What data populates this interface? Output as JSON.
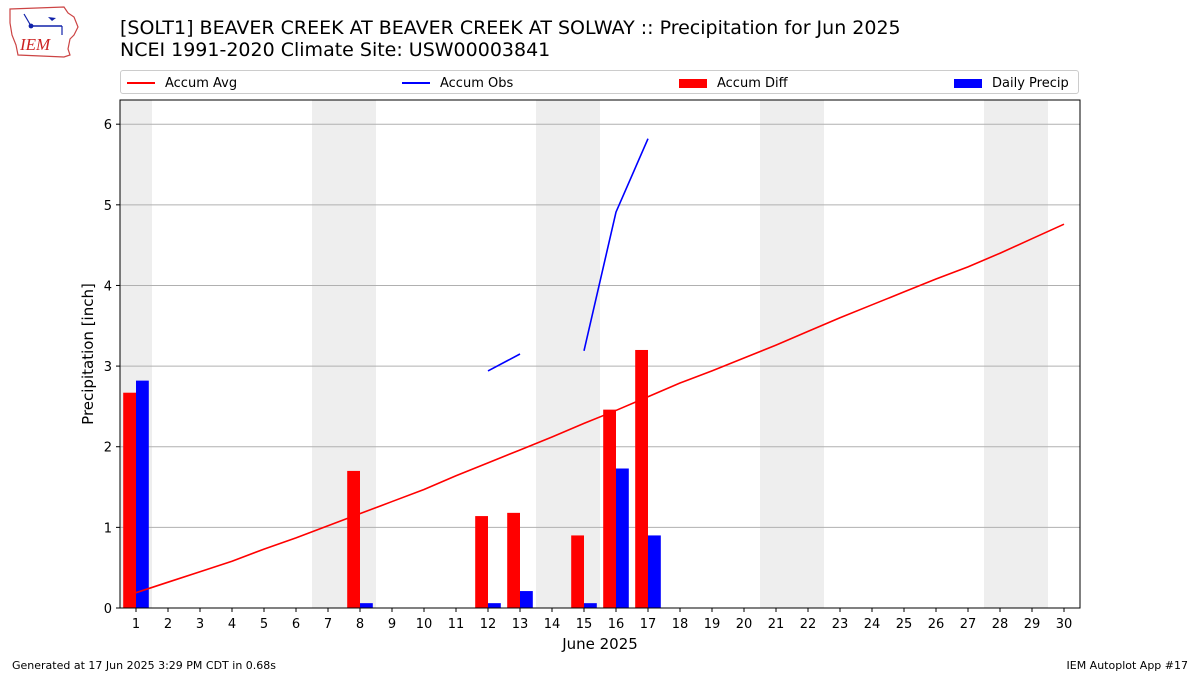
{
  "header": {
    "title_line1": "[SOLT1] BEAVER CREEK  AT BEAVER CREEK AT SOLWAY :: Precipitation for Jun 2025",
    "title_line2": "NCEI 1991-2020 Climate Site: USW00003841"
  },
  "logo": {
    "text": "IEM",
    "icon": "iowa-state-map-logo-icon"
  },
  "legend": {
    "placement": "top",
    "items": [
      {
        "label": "Accum Avg",
        "kind": "line",
        "color": "#ff0000"
      },
      {
        "label": "Accum Obs",
        "kind": "line",
        "color": "#0000ff"
      },
      {
        "label": "Accum Diff",
        "kind": "bar",
        "color": "#ff0000"
      },
      {
        "label": "Daily Precip",
        "kind": "bar",
        "color": "#0000ff"
      }
    ]
  },
  "footer": {
    "left": "Generated at 17 Jun 2025 3:29 PM CDT in 0.68s",
    "right": "IEM Autoplot App #17"
  },
  "chart_data": {
    "type": "bar",
    "xlabel": "June 2025",
    "ylabel": "Precipitation [inch]",
    "x": [
      1,
      2,
      3,
      4,
      5,
      6,
      7,
      8,
      9,
      10,
      11,
      12,
      13,
      14,
      15,
      16,
      17,
      18,
      19,
      20,
      21,
      22,
      23,
      24,
      25,
      26,
      27,
      28,
      29,
      30
    ],
    "xlim": [
      0.5,
      30.5
    ],
    "ylim": [
      0,
      6.3
    ],
    "yticks": [
      0,
      1,
      2,
      3,
      4,
      5,
      6
    ],
    "grid": "horizontal",
    "weekend_shading": [
      [
        0.5,
        1.5
      ],
      [
        6.5,
        8.5
      ],
      [
        13.5,
        15.5
      ],
      [
        20.5,
        22.5
      ],
      [
        27.5,
        29.5
      ]
    ],
    "shading_color": "#eeeeee",
    "series": [
      {
        "name": "Accum Avg",
        "type": "line",
        "color": "#ff0000",
        "x": [
          1,
          2,
          3,
          4,
          5,
          6,
          7,
          8,
          9,
          10,
          11,
          12,
          13,
          14,
          15,
          16,
          17,
          18,
          19,
          20,
          21,
          22,
          23,
          24,
          25,
          26,
          27,
          28,
          29,
          30
        ],
        "values": [
          0.19,
          0.32,
          0.45,
          0.58,
          0.73,
          0.87,
          1.02,
          1.17,
          1.32,
          1.47,
          1.64,
          1.8,
          1.96,
          2.12,
          2.29,
          2.45,
          2.62,
          2.79,
          2.94,
          3.1,
          3.26,
          3.43,
          3.6,
          3.76,
          3.92,
          4.08,
          4.23,
          4.4,
          4.58,
          4.76
        ]
      },
      {
        "name": "Accum Obs",
        "type": "line",
        "color": "#0000ff",
        "segments": [
          {
            "x": [
              12,
              13
            ],
            "values": [
              2.94,
              3.15
            ]
          },
          {
            "x": [
              15,
              16,
              17
            ],
            "values": [
              3.19,
              4.91,
              5.82
            ]
          }
        ]
      },
      {
        "name": "Accum Diff",
        "type": "bar",
        "color": "#ff0000",
        "x": [
          1,
          8,
          12,
          13,
          15,
          16,
          17
        ],
        "values": [
          2.67,
          1.7,
          1.14,
          1.18,
          0.9,
          2.46,
          3.2
        ]
      },
      {
        "name": "Daily Precip",
        "type": "bar",
        "color": "#0000ff",
        "x": [
          1,
          8,
          12,
          13,
          15,
          16,
          17
        ],
        "values": [
          2.82,
          0.06,
          0.06,
          0.21,
          0.06,
          1.73,
          0.9
        ]
      }
    ]
  }
}
